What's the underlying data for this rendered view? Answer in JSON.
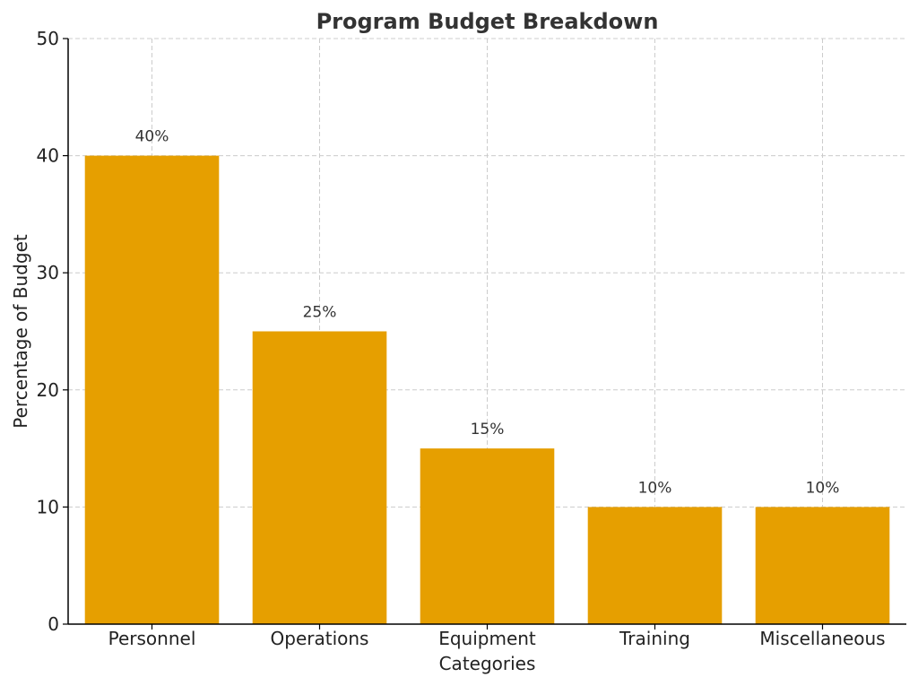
{
  "chart_data": {
    "type": "bar",
    "title": "Program Budget Breakdown",
    "xlabel": "Categories",
    "ylabel": "Percentage of Budget",
    "categories": [
      "Personnel",
      "Operations",
      "Equipment",
      "Training",
      "Miscellaneous"
    ],
    "values": [
      40,
      25,
      15,
      10,
      10
    ],
    "data_labels": [
      "40%",
      "25%",
      "15%",
      "10%",
      "10%"
    ],
    "ylim": [
      0,
      50
    ],
    "yticks": [
      0,
      10,
      20,
      30,
      40,
      50
    ],
    "grid": true,
    "bar_color": "#E69F00"
  }
}
